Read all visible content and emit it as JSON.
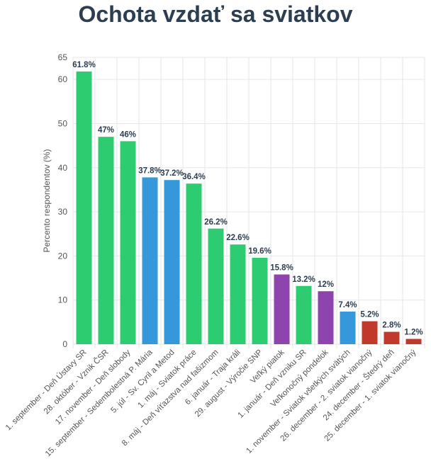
{
  "chart_data": {
    "type": "bar",
    "title": "Ochota vzdať sa sviatkov",
    "xlabel": "",
    "ylabel": "Percento respondentov (%)",
    "ylim": [
      0,
      65
    ],
    "yticks": [
      0,
      10,
      20,
      30,
      40,
      50,
      60,
      65
    ],
    "grid": true,
    "legend": "none",
    "categories": [
      "1. september - Deň Ústavy SR",
      "28. október - Vznik ČSR",
      "17. november - Deň slobody",
      "15. september - Sedembolestná P. Mária",
      "5. júl - Sv. Cyril a Metod",
      "1. máj - Sviatok práce",
      "8. máj - Deň víťazstva nad fašizmom",
      "6. január - Traja králi",
      "29. august - Výročie SNP",
      "Veľký piatok",
      "1. január - Deň vzniku SR",
      "Veľkonočný pondelok",
      "1. november - Sviatok všetkých svätých",
      "26. december - 2. sviatok vianočný",
      "24. december - Štedrý deň",
      "25. december - 1. sviatok vianočný"
    ],
    "values": [
      61.8,
      47,
      46,
      37.8,
      37.2,
      36.4,
      26.2,
      22.6,
      19.6,
      15.8,
      13.2,
      12,
      7.4,
      5.2,
      2.8,
      1.2
    ],
    "data_labels": [
      "61.8%",
      "47%",
      "46%",
      "37.8%",
      "37.2%",
      "36.4%",
      "26.2%",
      "22.6%",
      "19.6%",
      "15.8%",
      "13.2%",
      "12%",
      "7.4%",
      "5.2%",
      "2.8%",
      "1.2%"
    ],
    "bar_colors": [
      "#2ecc71",
      "#2ecc71",
      "#2ecc71",
      "#3498db",
      "#3498db",
      "#2ecc71",
      "#2ecc71",
      "#2ecc71",
      "#2ecc71",
      "#8e44ad",
      "#2ecc71",
      "#8e44ad",
      "#3498db",
      "#c0392b",
      "#c0392b",
      "#c0392b"
    ]
  }
}
